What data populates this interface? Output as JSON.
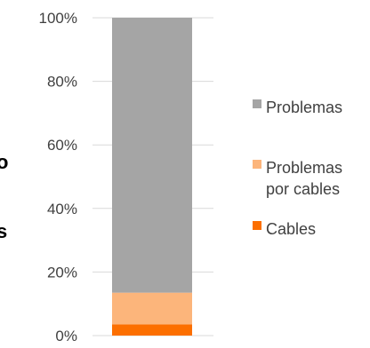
{
  "chart_data": {
    "type": "bar",
    "stacked": true,
    "categories": [
      ""
    ],
    "series": [
      {
        "name": "Cables",
        "values": [
          3.5
        ],
        "color": "#fc6f00"
      },
      {
        "name": "Problemas por cables",
        "values": [
          10
        ],
        "color": "#fcb57b"
      },
      {
        "name": "Problemas",
        "values": [
          86.5
        ],
        "color": "#a5a5a5"
      }
    ],
    "yticks": [
      "0%",
      "20%",
      "40%",
      "60%",
      "80%",
      "100%"
    ],
    "ylim": [
      0,
      100
    ],
    "grid": true,
    "legend": {
      "position": "right",
      "order": [
        "Problemas",
        "Problemas por cables",
        "Cables"
      ]
    },
    "title": "",
    "xlabel": "",
    "ylabel": ""
  },
  "cropped_text": [
    "o",
    "s"
  ],
  "colors": {
    "axis_text": "#404040",
    "gridline": "#d9d9d9"
  }
}
